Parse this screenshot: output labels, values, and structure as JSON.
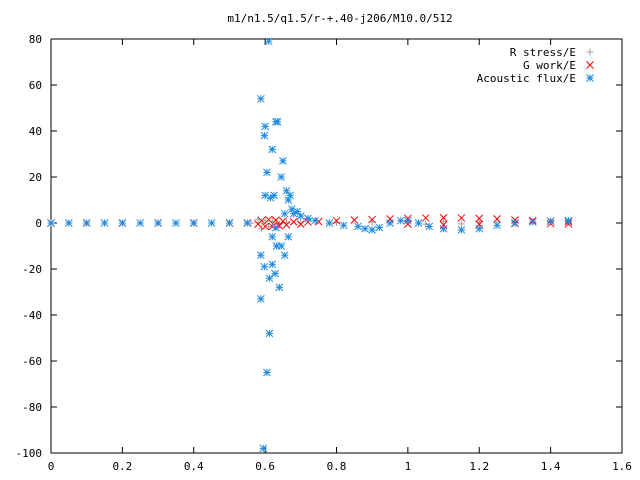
{
  "chart_data": {
    "type": "scatter",
    "title": "m1/n1.5/q1.5/r-+.40-j206/M10.0/512",
    "xlabel": "",
    "ylabel": "",
    "xlim": [
      0,
      1.6
    ],
    "ylim": [
      -100,
      80
    ],
    "x_ticks": [
      "0",
      "0.2",
      "0.4",
      "0.6",
      "0.8",
      "1",
      "1.2",
      "1.4",
      "1.6"
    ],
    "y_ticks": [
      "80",
      "60",
      "40",
      "20",
      "0",
      "-20",
      "-40",
      "-60",
      "-80",
      "-100"
    ],
    "legend_position": "top-right",
    "grid": false,
    "series": [
      {
        "name": "R stress/E",
        "marker": "plus",
        "color": "#a0a0a0",
        "points": [
          [
            0.0,
            0
          ],
          [
            0.1,
            0
          ],
          [
            0.2,
            0
          ],
          [
            0.3,
            0
          ],
          [
            0.4,
            0
          ],
          [
            0.5,
            0
          ],
          [
            0.56,
            0
          ],
          [
            0.58,
            1.5
          ],
          [
            0.59,
            -2.5
          ],
          [
            0.6,
            1.0
          ],
          [
            0.61,
            -1.5
          ],
          [
            0.62,
            0.8
          ],
          [
            0.64,
            -0.5
          ],
          [
            0.66,
            0.3
          ],
          [
            0.7,
            0.0
          ],
          [
            0.8,
            0.2
          ],
          [
            0.9,
            0.4
          ],
          [
            1.0,
            0.5
          ],
          [
            1.05,
            -0.5
          ],
          [
            1.1,
            0.6
          ],
          [
            1.15,
            -0.4
          ],
          [
            1.2,
            0.5
          ],
          [
            1.25,
            0.3
          ],
          [
            1.3,
            0.4
          ],
          [
            1.35,
            0.5
          ],
          [
            1.4,
            0.4
          ],
          [
            1.45,
            0.3
          ]
        ]
      },
      {
        "name": "G work/E",
        "marker": "cross",
        "color": "#ff0000",
        "points": [
          [
            0.0,
            0
          ],
          [
            0.1,
            0
          ],
          [
            0.2,
            0
          ],
          [
            0.3,
            0
          ],
          [
            0.4,
            0
          ],
          [
            0.5,
            0
          ],
          [
            0.55,
            0
          ],
          [
            0.58,
            -0.5
          ],
          [
            0.59,
            1.0
          ],
          [
            0.6,
            -1.5
          ],
          [
            0.61,
            1.5
          ],
          [
            0.62,
            -1.5
          ],
          [
            0.63,
            1.2
          ],
          [
            0.64,
            -1.2
          ],
          [
            0.65,
            0.8
          ],
          [
            0.66,
            -0.8
          ],
          [
            0.68,
            0.5
          ],
          [
            0.7,
            -0.5
          ],
          [
            0.72,
            0.4
          ],
          [
            0.75,
            0.6
          ],
          [
            0.8,
            1.0
          ],
          [
            0.85,
            1.3
          ],
          [
            0.9,
            1.5
          ],
          [
            0.95,
            1.8
          ],
          [
            1.0,
            2.0
          ],
          [
            1.05,
            2.2
          ],
          [
            1.1,
            2.3
          ],
          [
            1.15,
            2.2
          ],
          [
            1.2,
            2.0
          ],
          [
            1.25,
            1.8
          ],
          [
            1.3,
            1.3
          ],
          [
            1.35,
            1.0
          ],
          [
            1.4,
            0.8
          ],
          [
            1.45,
            0.6
          ],
          [
            1.0,
            -0.5
          ],
          [
            1.1,
            -0.8
          ],
          [
            1.2,
            -0.6
          ],
          [
            1.3,
            -0.2
          ],
          [
            1.4,
            -0.3
          ],
          [
            1.45,
            -0.4
          ]
        ]
      },
      {
        "name": "Acoustic flux/E",
        "marker": "star",
        "color": "#1e8be0",
        "points": [
          [
            0.0,
            0
          ],
          [
            0.05,
            0
          ],
          [
            0.1,
            0
          ],
          [
            0.15,
            0
          ],
          [
            0.2,
            0
          ],
          [
            0.25,
            0
          ],
          [
            0.3,
            0
          ],
          [
            0.35,
            0
          ],
          [
            0.4,
            0
          ],
          [
            0.45,
            0
          ],
          [
            0.5,
            0
          ],
          [
            0.55,
            0
          ],
          [
            0.588,
            54
          ],
          [
            0.6,
            42
          ],
          [
            0.598,
            38
          ],
          [
            0.61,
            79
          ],
          [
            0.62,
            32
          ],
          [
            0.63,
            44
          ],
          [
            0.635,
            44
          ],
          [
            0.645,
            20
          ],
          [
            0.65,
            27
          ],
          [
            0.66,
            14
          ],
          [
            0.665,
            10
          ],
          [
            0.67,
            12
          ],
          [
            0.675,
            6
          ],
          [
            0.655,
            4
          ],
          [
            0.6,
            12
          ],
          [
            0.615,
            11
          ],
          [
            0.625,
            12
          ],
          [
            0.605,
            22
          ],
          [
            0.588,
            -14
          ],
          [
            0.598,
            -19
          ],
          [
            0.612,
            -24
          ],
          [
            0.62,
            -18
          ],
          [
            0.628,
            -22
          ],
          [
            0.632,
            -10
          ],
          [
            0.64,
            -28
          ],
          [
            0.645,
            -10
          ],
          [
            0.655,
            -14
          ],
          [
            0.665,
            -6
          ],
          [
            0.588,
            -33
          ],
          [
            0.612,
            -48
          ],
          [
            0.605,
            -65
          ],
          [
            0.595,
            -98
          ],
          [
            0.62,
            -6
          ],
          [
            0.63,
            -2
          ],
          [
            0.68,
            4
          ],
          [
            0.69,
            5
          ],
          [
            0.7,
            3
          ],
          [
            0.72,
            2
          ],
          [
            0.74,
            1
          ],
          [
            0.78,
            0
          ],
          [
            0.82,
            -1
          ],
          [
            0.86,
            -1.5
          ],
          [
            0.88,
            -2.5
          ],
          [
            0.9,
            -3
          ],
          [
            0.92,
            -2
          ],
          [
            0.95,
            0
          ],
          [
            0.98,
            1
          ],
          [
            1.0,
            1
          ],
          [
            1.03,
            0
          ],
          [
            1.06,
            -1.5
          ],
          [
            1.1,
            -2.5
          ],
          [
            1.15,
            -3
          ],
          [
            1.2,
            -2.5
          ],
          [
            1.25,
            -1
          ],
          [
            1.3,
            0
          ],
          [
            1.35,
            0.5
          ],
          [
            1.4,
            0.8
          ],
          [
            1.45,
            1
          ]
        ]
      }
    ]
  }
}
